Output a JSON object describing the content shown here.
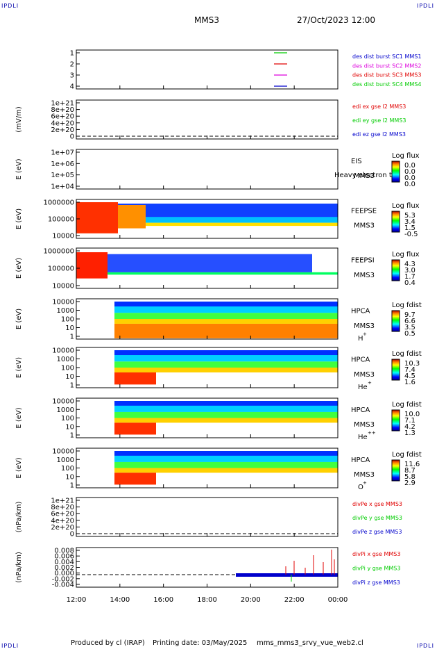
{
  "header": {
    "corner_tl": "IPDLI",
    "corner_tr": "IPDLI",
    "corner_bl": "IPDLI",
    "corner_br": "IPDLI",
    "spacecraft": "MMS3",
    "datetime": "27/Oct/2023 12:00"
  },
  "footer": {
    "produced": "Produced by cl (IRAP)",
    "printing": "Printing date: 03/May/2025",
    "script": "mms_mms3_srvy_vue_web2.cl"
  },
  "colors": {
    "red": "#e00000",
    "green": "#00cc00",
    "blue": "#0000cc",
    "magenta": "#dd00dd"
  },
  "chart_data": [
    {
      "id": "burst",
      "type": "line",
      "yticks": [
        "1",
        "2",
        "3",
        "4"
      ],
      "legend": [
        {
          "text": "des dist burst SC1 MMS1",
          "color": "#0000cc"
        },
        {
          "text": "des dist burst SC2 MMS2",
          "color": "#dd00dd"
        },
        {
          "text": "des dist burst SC3 MMS3",
          "color": "#e00000"
        },
        {
          "text": "des dist burst SC4 MMS4",
          "color": "#00cc00"
        }
      ]
    },
    {
      "id": "edi",
      "type": "line",
      "ylabel": "(mV/m)",
      "yticks": [
        "1e+21",
        "8e+20",
        "6e+20",
        "4e+20",
        "2e+20",
        "0"
      ],
      "legend": [
        {
          "text": "edi ex gse l2 MMS3",
          "color": "#e00000"
        },
        {
          "text": "edi ey gse l2 MMS3",
          "color": "#00cc00"
        },
        {
          "text": "edi ez gse l2 MMS3",
          "color": "#0000cc"
        }
      ]
    },
    {
      "id": "eis",
      "type": "heatmap",
      "ylabel": "E (eV)",
      "yticks": [
        "1e+07",
        "1e+06",
        "1e+05",
        "1e+04"
      ],
      "label1": "EIS",
      "label2": "MMS3",
      "overlay": "Heavy electron to",
      "cbar_title": "Log flux",
      "cbar_ticks": [
        "0.0",
        "0.0",
        "0.0",
        "0.0"
      ]
    },
    {
      "id": "feepse",
      "type": "heatmap",
      "ylabel": "E (eV)",
      "yticks": [
        "1000000",
        "100000",
        "10000"
      ],
      "label1": "FEEPSE",
      "label2": "MMS3",
      "cbar_title": "Log flux",
      "cbar_ticks": [
        "5.3",
        "3.4",
        "1.5",
        "-0.5"
      ]
    },
    {
      "id": "feepsi",
      "type": "heatmap",
      "ylabel": "E (eV)",
      "yticks": [
        "1000000",
        "100000",
        "10000"
      ],
      "label1": "FEEPSI",
      "label2": "MMS3",
      "cbar_title": "Log flux",
      "cbar_ticks": [
        "4.3",
        "3.0",
        "1.7",
        "0.4"
      ]
    },
    {
      "id": "hpca_h",
      "type": "heatmap",
      "ylabel": "E (eV)",
      "yticks": [
        "10000",
        "1000",
        "100",
        "10",
        "1"
      ],
      "label1": "HPCA",
      "label2": "MMS3",
      "species": "H",
      "charge": "+",
      "cbar_title": "Log fdist",
      "cbar_ticks": [
        "9.7",
        "6.6",
        "3.5",
        "0.5"
      ]
    },
    {
      "id": "hpca_he",
      "type": "heatmap",
      "ylabel": "E (eV)",
      "yticks": [
        "10000",
        "1000",
        "100",
        "10",
        "1"
      ],
      "label1": "HPCA",
      "label2": "MMS3",
      "species": "He",
      "charge": "+",
      "cbar_title": "Log fdist",
      "cbar_ticks": [
        "10.3",
        "7.4",
        "4.5",
        "1.6"
      ]
    },
    {
      "id": "hpca_he2",
      "type": "heatmap",
      "ylabel": "E (eV)",
      "yticks": [
        "10000",
        "1000",
        "100",
        "10",
        "1"
      ],
      "label1": "HPCA",
      "label2": "MMS3",
      "species": "He",
      "charge": "++",
      "cbar_title": "Log fdist",
      "cbar_ticks": [
        "10.0",
        "7.1",
        "4.2",
        "1.3"
      ]
    },
    {
      "id": "hpca_o",
      "type": "heatmap",
      "ylabel": "E (eV)",
      "yticks": [
        "10000",
        "1000",
        "100",
        "10",
        "1"
      ],
      "label1": "HPCA",
      "label2": "MMS3",
      "species": "O",
      "charge": "+",
      "cbar_title": "Log fdist",
      "cbar_ticks": [
        "11.6",
        "8.7",
        "5.8",
        "2.9"
      ]
    },
    {
      "id": "divpe",
      "type": "line",
      "ylabel": "(nPa/km)",
      "yticks": [
        "1e+21",
        "8e+20",
        "6e+20",
        "4e+20",
        "2e+20",
        "0"
      ],
      "legend": [
        {
          "text": "divPe x gse MMS3",
          "color": "#e00000"
        },
        {
          "text": "divPe y gse MMS3",
          "color": "#00cc00"
        },
        {
          "text": "divPe z gse MMS3",
          "color": "#0000cc"
        }
      ]
    },
    {
      "id": "divpi",
      "type": "line",
      "ylabel": "(nPa/km)",
      "yticks": [
        "0.008",
        "0.006",
        "0.004",
        "0.002",
        "0.000",
        "-0.002",
        "-0.004"
      ],
      "legend": [
        {
          "text": "divPi x gse MMS3",
          "color": "#e00000"
        },
        {
          "text": "divPi y gse MMS3",
          "color": "#00cc00"
        },
        {
          "text": "divPi z gse MMS3",
          "color": "#0000cc"
        }
      ]
    }
  ],
  "xaxis": {
    "ticks": [
      "12:00",
      "14:00",
      "16:00",
      "18:00",
      "20:00",
      "22:00",
      "00:00"
    ]
  }
}
